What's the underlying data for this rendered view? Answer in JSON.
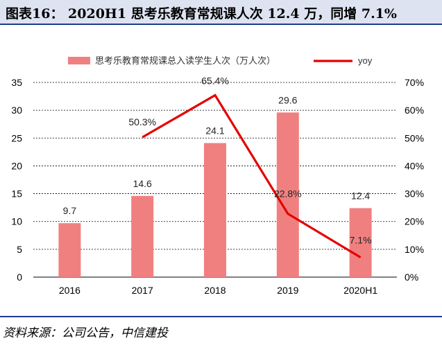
{
  "header": {
    "title": "图表16： 2020H1 思考乐教育常规课人次 12.4 万，同增 7.1%"
  },
  "footer": {
    "source": "资料来源：公司公告，中信建投"
  },
  "colors": {
    "bar": "#f08080",
    "line": "#e60000",
    "title_bg": "#dde3f0",
    "rule": "#1b3a8c"
  },
  "chart_data": {
    "type": "bar",
    "categories": [
      "2016",
      "2017",
      "2018",
      "2019",
      "2020H1"
    ],
    "series": [
      {
        "name": "思考乐教育常规课总入读学生人次（万人次）",
        "type": "bar",
        "axis": "left",
        "values": [
          9.7,
          14.6,
          24.1,
          29.6,
          12.4
        ],
        "labels": [
          "9.7",
          "14.6",
          "24.1",
          "29.6",
          "12.4"
        ]
      },
      {
        "name": "yoy",
        "type": "line",
        "axis": "right",
        "values": [
          null,
          50.3,
          65.4,
          22.8,
          7.1
        ],
        "labels": [
          "",
          "50.3%",
          "65.4%",
          "22.8%",
          "7.1%"
        ]
      }
    ],
    "ylim_left": [
      0,
      35
    ],
    "yticks_left": [
      "0",
      "5",
      "10",
      "15",
      "20",
      "25",
      "30",
      "35"
    ],
    "ylim_right": [
      0,
      70
    ],
    "yticks_right": [
      "0%",
      "10%",
      "20%",
      "30%",
      "40%",
      "50%",
      "60%",
      "70%"
    ],
    "grid": "dashed",
    "legend": "top"
  }
}
